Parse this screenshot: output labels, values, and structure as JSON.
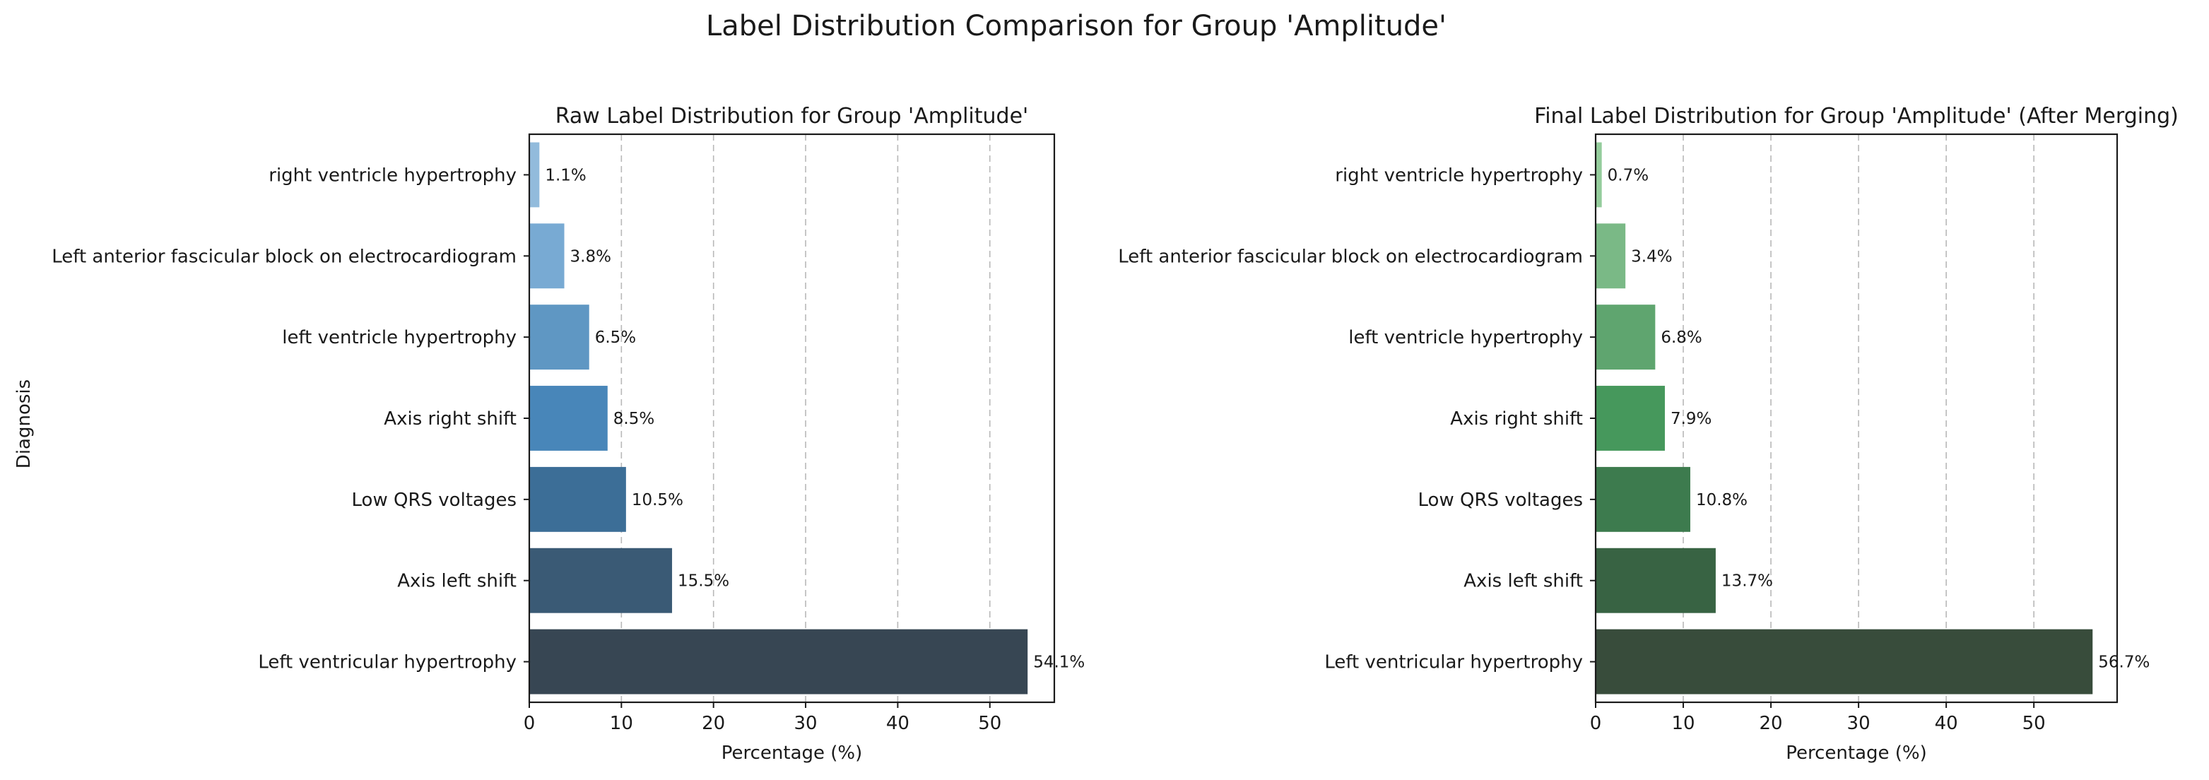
{
  "figure_title": "Label Distribution Comparison for Group 'Amplitude'",
  "y_axis_label": "Diagnosis",
  "chart_data": [
    {
      "type": "bar",
      "orientation": "horizontal",
      "title": "Raw Label Distribution for Group 'Amplitude'",
      "xlabel": "Percentage (%)",
      "xlim": [
        0,
        57
      ],
      "xticks": [
        0,
        10,
        20,
        30,
        40,
        50
      ],
      "grid": "x-dashed",
      "categories": [
        "right ventricle hypertrophy",
        "Left anterior fascicular block on electrocardiogram",
        "left ventricle hypertrophy",
        "Axis right shift",
        "Low QRS voltages",
        "Axis left shift",
        "Left ventricular hypertrophy"
      ],
      "values": [
        1.1,
        3.8,
        6.5,
        8.5,
        10.5,
        15.5,
        54.1
      ],
      "value_labels": [
        "1.1%",
        "3.8%",
        "6.5%",
        "8.5%",
        "10.5%",
        "15.5%",
        "54.1%"
      ],
      "colors": [
        "#92bbdc",
        "#78aad3",
        "#5f97c3",
        "#4886b9",
        "#3c6e97",
        "#3a5a75",
        "#374653"
      ]
    },
    {
      "type": "bar",
      "orientation": "horizontal",
      "title": "Final Label Distribution for Group 'Amplitude' (After Merging)",
      "xlabel": "Percentage (%)",
      "xlim": [
        0,
        59.5
      ],
      "xticks": [
        0,
        10,
        20,
        30,
        40,
        50
      ],
      "grid": "x-dashed",
      "categories": [
        "right ventricle hypertrophy",
        "Left anterior fascicular block on electrocardiogram",
        "left ventricle hypertrophy",
        "Axis right shift",
        "Low QRS voltages",
        "Axis left shift",
        "Left ventricular hypertrophy"
      ],
      "values": [
        0.7,
        3.4,
        6.8,
        7.9,
        10.8,
        13.7,
        56.7
      ],
      "value_labels": [
        "0.7%",
        "3.4%",
        "6.8%",
        "7.9%",
        "10.8%",
        "13.7%",
        "56.7%"
      ],
      "colors": [
        "#95cd9c",
        "#7ab986",
        "#5fa56f",
        "#46985c",
        "#3d7b4e",
        "#386343",
        "#384c3b"
      ]
    }
  ]
}
